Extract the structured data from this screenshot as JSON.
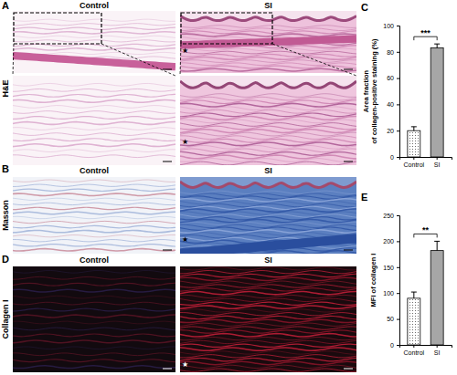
{
  "panels": {
    "labels": [
      "A",
      "B",
      "C",
      "D",
      "E"
    ],
    "columns": [
      "Control",
      "SI"
    ],
    "rows": [
      "H&E",
      "Masson",
      "Collagen I"
    ],
    "star": "★"
  },
  "chart_data": [
    {
      "type": "bar",
      "ylabel": "Area fraction of collagen-positive staining (%)",
      "categories": [
        "Control",
        "SI"
      ],
      "values": [
        20,
        83
      ],
      "errors": [
        3,
        3
      ],
      "colors": [
        "#ffffff",
        "#a6a6a6"
      ],
      "ylim": [
        0,
        100
      ],
      "yticks": [
        0,
        20,
        40,
        60,
        80,
        100
      ],
      "annotations": [
        "***"
      ]
    },
    {
      "type": "bar",
      "ylabel": "MFI of collagen I",
      "categories": [
        "Control",
        "SI"
      ],
      "values": [
        90,
        182
      ],
      "errors": [
        12,
        18
      ],
      "colors": [
        "#ffffff",
        "#a6a6a6"
      ],
      "ylim": [
        0,
        250
      ],
      "yticks": [
        0,
        50,
        100,
        150,
        200,
        250
      ],
      "annotations": [
        "**"
      ]
    }
  ]
}
